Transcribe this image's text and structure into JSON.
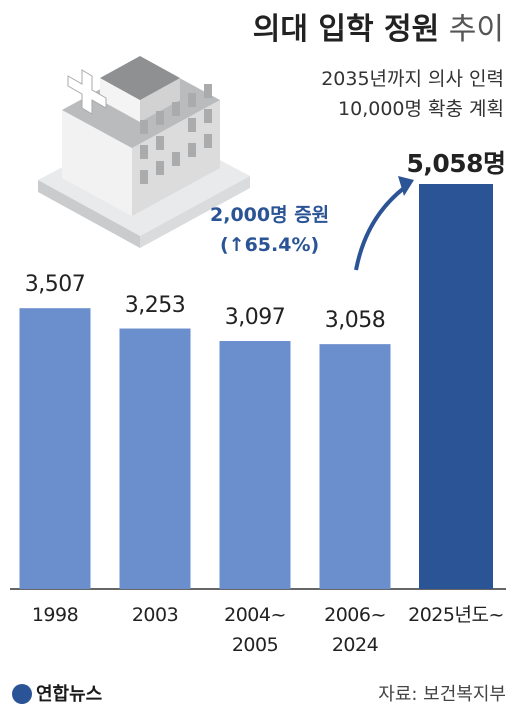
{
  "chart_data": {
    "type": "bar",
    "title": "의대 입학 정원",
    "title_suffix": "추이",
    "subtitle": "2035년까지 의사 인력\n10,000명 확충 계획",
    "annotation": "2,000명 증원\n(↑65.4%)",
    "categories": [
      "1998",
      "2003",
      "2004~\n2005",
      "2006~\n2024",
      "2025년도~"
    ],
    "values": [
      3507,
      3253,
      3097,
      3058,
      5058
    ],
    "value_labels": [
      "3,507",
      "3,253",
      "3,097",
      "3,058",
      "5,058명"
    ],
    "colors": [
      "#6b8fcd",
      "#6b8fcd",
      "#6b8fcd",
      "#6b8fcd",
      "#2a5496"
    ],
    "source": "자료: 보건복지부",
    "logo": "연합뉴스"
  }
}
